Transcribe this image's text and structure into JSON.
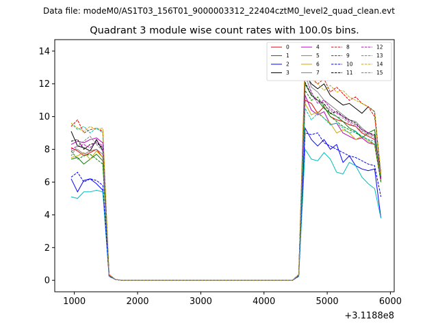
{
  "chart_data": {
    "type": "line",
    "suptitle": "Data file: modeM0/AS1T03_156T01_9000003312_22404cztM0_level2_quad_clean.evt",
    "title": "Quadrant 3 module wise count rates with 100.0s bins.",
    "xlabel": "",
    "ylabel": "",
    "x_offset_label": "+3.1188e8",
    "xlim": [
      690,
      6060
    ],
    "ylim": [
      -0.7,
      14.7
    ],
    "xticks": [
      1000,
      2000,
      3000,
      4000,
      5000,
      6000
    ],
    "yticks": [
      0,
      2,
      4,
      6,
      8,
      10,
      12,
      14
    ],
    "legend_position": "top-right",
    "x": [
      950,
      1050,
      1150,
      1250,
      1350,
      1450,
      1550,
      1650,
      1750,
      1850,
      1950,
      2050,
      2150,
      2250,
      2350,
      2450,
      2550,
      2650,
      2750,
      2850,
      2950,
      3050,
      3150,
      3250,
      3350,
      3450,
      3550,
      3650,
      3750,
      3850,
      3950,
      4050,
      4150,
      4250,
      4350,
      4450,
      4550,
      4650,
      4750,
      4850,
      4950,
      5050,
      5150,
      5250,
      5350,
      5450,
      5550,
      5650,
      5750,
      5850
    ],
    "series": [
      {
        "name": "0",
        "color": "#e00000",
        "dash": "solid",
        "values": [
          8.1,
          7.9,
          7.6,
          7.8,
          8.0,
          7.5,
          0.3,
          0.05,
          0,
          0,
          0,
          0,
          0,
          0,
          0,
          0,
          0,
          0,
          0,
          0,
          0,
          0,
          0,
          0,
          0,
          0,
          0,
          0,
          0,
          0,
          0,
          0,
          0,
          0,
          0,
          0,
          0.3,
          11.0,
          10.8,
          10.2,
          10.6,
          10.0,
          9.8,
          9.7,
          9.5,
          9.4,
          9.0,
          8.8,
          8.6,
          6.2
        ]
      },
      {
        "name": "1",
        "color": "#008000",
        "dash": "solid",
        "values": [
          7.4,
          7.5,
          7.1,
          7.4,
          7.7,
          7.3,
          0.3,
          0.05,
          0,
          0,
          0,
          0,
          0,
          0,
          0,
          0,
          0,
          0,
          0,
          0,
          0,
          0,
          0,
          0,
          0,
          0,
          0,
          0,
          0,
          0,
          0,
          0,
          0,
          0,
          0,
          0,
          0.3,
          12.0,
          11.3,
          11.0,
          10.5,
          10.2,
          10.0,
          9.7,
          9.3,
          9.1,
          8.7,
          9.0,
          9.2,
          6.0
        ]
      },
      {
        "name": "2",
        "color": "#0000ff",
        "dash": "solid",
        "values": [
          6.2,
          5.4,
          6.1,
          6.2,
          5.9,
          5.5,
          0.25,
          0.05,
          0,
          0,
          0,
          0,
          0,
          0,
          0,
          0,
          0,
          0,
          0,
          0,
          0,
          0,
          0,
          0,
          0,
          0,
          0,
          0,
          0,
          0,
          0,
          0,
          0,
          0,
          0,
          0,
          0.25,
          9.3,
          8.6,
          8.2,
          8.6,
          8.0,
          8.3,
          7.2,
          7.6,
          7.0,
          6.8,
          6.7,
          6.8,
          3.8
        ]
      },
      {
        "name": "3",
        "color": "#000000",
        "dash": "solid",
        "values": [
          9.1,
          8.2,
          8.1,
          7.9,
          8.6,
          7.9,
          0.35,
          0.05,
          0,
          0,
          0,
          0,
          0,
          0,
          0,
          0,
          0,
          0,
          0,
          0,
          0,
          0,
          0,
          0,
          0,
          0,
          0,
          0,
          0,
          0,
          0,
          0,
          0,
          0,
          0,
          0,
          0.35,
          12.6,
          12.0,
          11.7,
          12.0,
          11.3,
          11.0,
          10.7,
          10.8,
          10.5,
          10.2,
          10.6,
          10.3,
          6.3
        ]
      },
      {
        "name": "4",
        "color": "#bb00bb",
        "dash": "solid",
        "values": [
          8.3,
          8.5,
          8.4,
          8.6,
          8.7,
          8.4,
          0.3,
          0.05,
          0,
          0,
          0,
          0,
          0,
          0,
          0,
          0,
          0,
          0,
          0,
          0,
          0,
          0,
          0,
          0,
          0,
          0,
          0,
          0,
          0,
          0,
          0,
          0,
          0,
          0,
          0,
          0,
          0.3,
          11.3,
          10.4,
          10.1,
          10.3,
          9.5,
          9.6,
          9.0,
          8.8,
          8.6,
          8.7,
          8.4,
          8.3,
          6.1
        ]
      },
      {
        "name": "5",
        "color": "#00bbbb",
        "dash": "solid",
        "values": [
          5.1,
          5.0,
          5.4,
          5.4,
          5.5,
          5.4,
          0.25,
          0.05,
          0,
          0,
          0,
          0,
          0,
          0,
          0,
          0,
          0,
          0,
          0,
          0,
          0,
          0,
          0,
          0,
          0,
          0,
          0,
          0,
          0,
          0,
          0,
          0,
          0,
          0,
          0,
          0,
          0.25,
          8.0,
          7.4,
          7.3,
          7.8,
          7.4,
          6.6,
          6.5,
          7.2,
          7.0,
          6.3,
          5.9,
          5.6,
          3.8
        ]
      },
      {
        "name": "6",
        "color": "#ccaa00",
        "dash": "solid",
        "values": [
          7.5,
          7.6,
          7.8,
          7.4,
          7.9,
          7.5,
          0.3,
          0.05,
          0,
          0,
          0,
          0,
          0,
          0,
          0,
          0,
          0,
          0,
          0,
          0,
          0,
          0,
          0,
          0,
          0,
          0,
          0,
          0,
          0,
          0,
          0,
          0,
          0,
          0,
          0,
          0,
          0.3,
          10.8,
          10.1,
          10.3,
          9.9,
          9.6,
          9.0,
          9.2,
          9.0,
          8.6,
          8.8,
          8.5,
          8.3,
          6.0
        ]
      },
      {
        "name": "7",
        "color": "#808080",
        "dash": "solid",
        "values": [
          7.9,
          8.0,
          7.7,
          7.9,
          8.0,
          7.7,
          0.3,
          0.05,
          0,
          0,
          0,
          0,
          0,
          0,
          0,
          0,
          0,
          0,
          0,
          0,
          0,
          0,
          0,
          0,
          0,
          0,
          0,
          0,
          0,
          0,
          0,
          0,
          0,
          0,
          0,
          0,
          0.3,
          12.9,
          11.8,
          11.5,
          11.0,
          10.7,
          10.4,
          10.1,
          9.8,
          9.7,
          9.3,
          9.0,
          8.8,
          6.4
        ]
      },
      {
        "name": "8",
        "color": "#e00000",
        "dash": "dashed",
        "values": [
          9.4,
          9.8,
          9.0,
          9.2,
          9.3,
          9.1,
          0.35,
          0.05,
          0,
          0,
          0,
          0,
          0,
          0,
          0,
          0,
          0,
          0,
          0,
          0,
          0,
          0,
          0,
          0,
          0,
          0,
          0,
          0,
          0,
          0,
          0,
          0,
          0,
          0,
          0,
          0,
          0.35,
          13.3,
          12.3,
          12.0,
          12.3,
          11.5,
          11.8,
          11.4,
          11.0,
          11.2,
          10.8,
          10.6,
          10.0,
          6.6
        ]
      },
      {
        "name": "9",
        "color": "#008000",
        "dash": "dashed",
        "values": [
          7.9,
          7.4,
          7.6,
          7.7,
          7.4,
          7.1,
          0.3,
          0.05,
          0,
          0,
          0,
          0,
          0,
          0,
          0,
          0,
          0,
          0,
          0,
          0,
          0,
          0,
          0,
          0,
          0,
          0,
          0,
          0,
          0,
          0,
          0,
          0,
          0,
          0,
          0,
          0,
          0.3,
          11.6,
          11.0,
          11.2,
          10.6,
          10.0,
          9.7,
          9.4,
          9.2,
          9.0,
          8.8,
          8.6,
          8.3,
          6.0
        ]
      },
      {
        "name": "10",
        "color": "#0000ff",
        "dash": "dashed",
        "values": [
          6.3,
          6.6,
          6.0,
          6.2,
          6.1,
          5.8,
          0.25,
          0.05,
          0,
          0,
          0,
          0,
          0,
          0,
          0,
          0,
          0,
          0,
          0,
          0,
          0,
          0,
          0,
          0,
          0,
          0,
          0,
          0,
          0,
          0,
          0,
          0,
          0,
          0,
          0,
          0,
          0.25,
          9.0,
          8.9,
          9.0,
          8.4,
          8.2,
          8.0,
          7.8,
          7.6,
          7.5,
          7.3,
          7.1,
          7.0,
          5.1
        ]
      },
      {
        "name": "11",
        "color": "#000000",
        "dash": "dashed",
        "values": [
          8.5,
          8.6,
          8.0,
          8.3,
          8.4,
          8.1,
          0.3,
          0.05,
          0,
          0,
          0,
          0,
          0,
          0,
          0,
          0,
          0,
          0,
          0,
          0,
          0,
          0,
          0,
          0,
          0,
          0,
          0,
          0,
          0,
          0,
          0,
          0,
          0,
          0,
          0,
          0,
          0.3,
          12.1,
          11.3,
          11.0,
          10.8,
          10.2,
          10.3,
          10.0,
          9.8,
          9.6,
          9.2,
          9.0,
          8.9,
          6.3
        ]
      },
      {
        "name": "12",
        "color": "#bb00bb",
        "dash": "dashed",
        "values": [
          8.0,
          8.2,
          8.3,
          8.1,
          8.5,
          8.2,
          0.3,
          0.05,
          0,
          0,
          0,
          0,
          0,
          0,
          0,
          0,
          0,
          0,
          0,
          0,
          0,
          0,
          0,
          0,
          0,
          0,
          0,
          0,
          0,
          0,
          0,
          0,
          0,
          0,
          0,
          0,
          0.3,
          12.5,
          11.5,
          10.8,
          11.0,
          10.5,
          10.2,
          10.0,
          9.7,
          9.5,
          9.2,
          9.0,
          8.8,
          6.2
        ]
      },
      {
        "name": "13",
        "color": "#00bbbb",
        "dash": "dashed",
        "values": [
          9.6,
          9.2,
          9.4,
          9.0,
          9.3,
          9.0,
          0.35,
          0.05,
          0,
          0,
          0,
          0,
          0,
          0,
          0,
          0,
          0,
          0,
          0,
          0,
          0,
          0,
          0,
          0,
          0,
          0,
          0,
          0,
          0,
          0,
          0,
          0,
          0,
          0,
          0,
          0,
          0.35,
          10.5,
          9.8,
          10.2,
          9.9,
          9.5,
          9.6,
          9.3,
          9.0,
          9.1,
          8.8,
          8.6,
          8.5,
          6.4
        ]
      },
      {
        "name": "14",
        "color": "#ccaa00",
        "dash": "dashed",
        "values": [
          9.6,
          9.3,
          9.1,
          9.4,
          9.2,
          9.3,
          0.35,
          0.05,
          0,
          0,
          0,
          0,
          0,
          0,
          0,
          0,
          0,
          0,
          0,
          0,
          0,
          0,
          0,
          0,
          0,
          0,
          0,
          0,
          0,
          0,
          0,
          0,
          0,
          0,
          0,
          0,
          0.35,
          13.8,
          12.4,
          12.0,
          11.6,
          11.9,
          11.5,
          11.6,
          11.2,
          11.0,
          10.8,
          10.6,
          10.3,
          6.5
        ]
      },
      {
        "name": "15",
        "color": "#808080",
        "dash": "dashed",
        "values": [
          7.6,
          8.2,
          8.5,
          8.8,
          8.3,
          7.9,
          0.3,
          0.05,
          0,
          0,
          0,
          0,
          0,
          0,
          0,
          0,
          0,
          0,
          0,
          0,
          0,
          0,
          0,
          0,
          0,
          0,
          0,
          0,
          0,
          0,
          0,
          0,
          0,
          0,
          0,
          0,
          0.3,
          12.6,
          11.4,
          11.0,
          10.7,
          10.4,
          10.0,
          9.9,
          9.6,
          9.4,
          9.1,
          8.9,
          8.7,
          6.3
        ]
      }
    ]
  }
}
